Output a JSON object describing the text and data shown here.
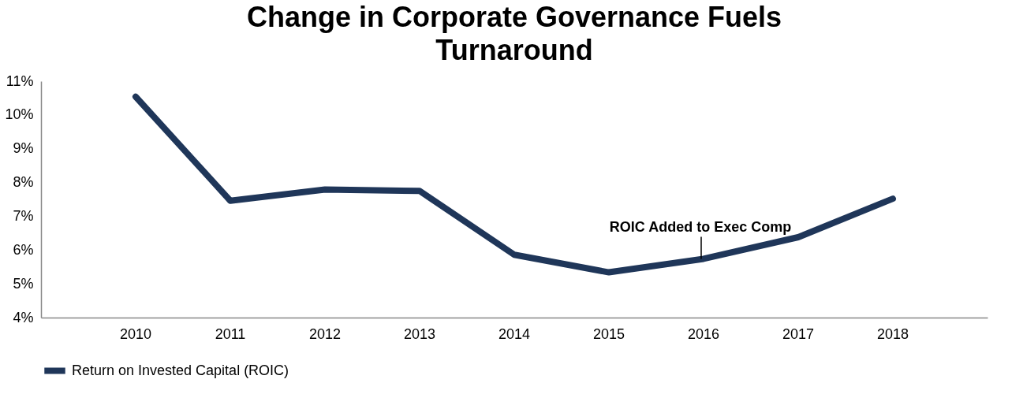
{
  "chart_data": {
    "type": "line",
    "title": "Change in Corporate Governance Fuels Turnaround",
    "categories": [
      "2010",
      "2011",
      "2012",
      "2013",
      "2014",
      "2015",
      "2016",
      "2017",
      "2018"
    ],
    "series": [
      {
        "name": "Return on Invested Capital (ROIC)",
        "color": "#1f3659",
        "values": [
          10.54,
          7.46,
          7.79,
          7.75,
          5.86,
          5.34,
          5.74,
          6.38,
          7.52
        ]
      }
    ],
    "ylim": [
      4,
      11
    ],
    "yticks": [
      {
        "value": 4,
        "label": "4%"
      },
      {
        "value": 5,
        "label": "5%"
      },
      {
        "value": 6,
        "label": "6%"
      },
      {
        "value": 7,
        "label": "7%"
      },
      {
        "value": 8,
        "label": "8%"
      },
      {
        "value": 9,
        "label": "9%"
      },
      {
        "value": 10,
        "label": "10%"
      },
      {
        "value": 11,
        "label": "11%"
      }
    ],
    "annotations": [
      {
        "text": "ROIC Added to Exec Comp",
        "x": "2016",
        "y": 5.74
      }
    ],
    "grid": false,
    "marker": "none",
    "line_style": "solid",
    "legend": "bottom"
  }
}
